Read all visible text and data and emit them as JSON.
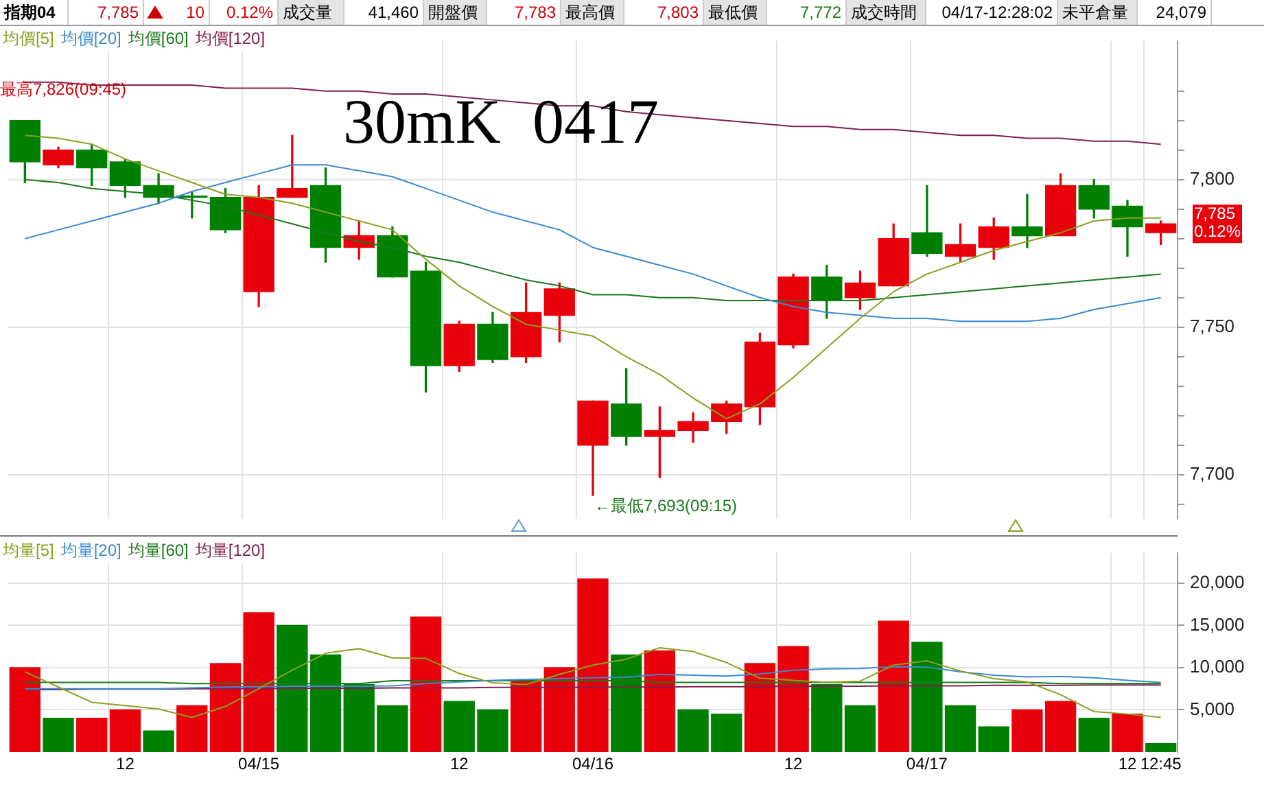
{
  "chart_data": [
    {
      "type": "other",
      "annotations": [
        "指期04",
        "7,785",
        "10",
        "0.12%",
        "成交量",
        "41,460",
        "開盤價",
        "7,783",
        "最高價",
        "7,803",
        "最低價",
        "7,772",
        "成交時間",
        "04/17-12:28:02",
        "未平倉量",
        "24,079"
      ]
    },
    {
      "type": "candlestick",
      "title": "30mK  0417",
      "categories": [
        null,
        null,
        null,
        null,
        null,
        null,
        null,
        null,
        null,
        null,
        null,
        null,
        null,
        null,
        null,
        null,
        null,
        null,
        null,
        null,
        null,
        null,
        null,
        null,
        null,
        null,
        null,
        null,
        null,
        null,
        null,
        null,
        null,
        null,
        null
      ],
      "ohlc": [
        [
          7820,
          7820,
          7799,
          7806
        ],
        [
          7805,
          7811,
          7804,
          7810
        ],
        [
          7810,
          7812,
          7798,
          7804
        ],
        [
          7806,
          7807,
          7794,
          7798
        ],
        [
          7798,
          7802,
          7792,
          7794
        ],
        [
          7794,
          7796,
          7787,
          7794
        ],
        [
          7794,
          7797,
          7782,
          7783
        ],
        [
          7762,
          7798,
          7757,
          7794
        ],
        [
          7794,
          7815,
          7794,
          7797
        ],
        [
          7798,
          7804,
          7772,
          7777
        ],
        [
          7777,
          7786,
          7773,
          7781
        ],
        [
          7781,
          7784,
          7767,
          7767
        ],
        [
          7769,
          7772,
          7728,
          7737
        ],
        [
          7737,
          7752,
          7735,
          7751
        ],
        [
          7751,
          7755,
          7738,
          7739
        ],
        [
          7740,
          7765,
          7738,
          7755
        ],
        [
          7754,
          7765,
          7745,
          7763
        ],
        [
          7710,
          7725,
          7693,
          7725
        ],
        [
          7724,
          7736,
          7710,
          7713
        ],
        [
          7713,
          7723,
          7699,
          7715
        ],
        [
          7715,
          7721,
          7711,
          7718
        ],
        [
          7718,
          7725,
          7714,
          7724
        ],
        [
          7723,
          7748,
          7717,
          7745
        ],
        [
          7744,
          7768,
          7743,
          7767
        ],
        [
          7767,
          7771,
          7753,
          7759
        ],
        [
          7760,
          7769,
          7756,
          7765
        ],
        [
          7764,
          7785,
          7764,
          7780
        ],
        [
          7782,
          7798,
          7774,
          7775
        ],
        [
          7774,
          7785,
          7772,
          7778
        ],
        [
          7777,
          7787,
          7773,
          7784
        ],
        [
          7784,
          7795,
          7777,
          7781
        ],
        [
          7781,
          7802,
          7781,
          7798
        ],
        [
          7798,
          7800,
          7787,
          7790
        ],
        [
          7791,
          7793,
          7774,
          7784
        ],
        [
          7782,
          7786,
          7778,
          7785
        ]
      ],
      "colors": [
        "#008000",
        "#e8000b",
        "#008000",
        "#008000",
        "#008000",
        "#008000",
        "#008000",
        "#e8000b",
        "#e8000b",
        "#008000",
        "#e8000b",
        "#008000",
        "#008000",
        "#e8000b",
        "#008000",
        "#e8000b",
        "#e8000b",
        "#e8000b",
        "#008000",
        "#e8000b",
        "#e8000b",
        "#e8000b",
        "#e8000b",
        "#e8000b",
        "#008000",
        "#e8000b",
        "#e8000b",
        "#008000",
        "#e8000b",
        "#e8000b",
        "#008000",
        "#e8000b",
        "#008000",
        "#008000",
        "#e8000b"
      ],
      "series": [
        {
          "name": "均價[5]",
          "type": "line",
          "color": "#8aa020",
          "values": [
            7815,
            7814,
            7812,
            7807,
            7803,
            7799,
            7795,
            7794,
            7792,
            7789,
            7786,
            7783,
            7773,
            7764,
            7757,
            7751,
            7749,
            7747,
            7740,
            7734,
            7726,
            7719,
            7724,
            7733,
            7743,
            7753,
            7762,
            7768,
            7772,
            7776,
            7779,
            7782,
            7786,
            7787,
            7787
          ]
        },
        {
          "name": "均價[20]",
          "type": "line",
          "color": "#3a8ad0",
          "values": [
            7780,
            7783,
            7786,
            7789,
            7792,
            7796,
            7799,
            7802,
            7805,
            7805,
            7803,
            7801,
            7797,
            7793,
            7789,
            7786,
            7783,
            7777,
            7774,
            7771,
            7768,
            7764,
            7760,
            7757,
            7755,
            7754,
            7753,
            7753,
            7752,
            7752,
            7752,
            7753,
            7756,
            7758,
            7760
          ]
        },
        {
          "name": "均價[60]",
          "type": "line",
          "color": "#1a7a1a",
          "values": [
            7800,
            7799,
            7797,
            7796,
            7795,
            7793,
            7791,
            7788,
            7785,
            7782,
            7779,
            7777,
            7774,
            7772,
            7769,
            7766,
            7764,
            7761,
            7761,
            7760,
            7760,
            7759,
            7759,
            7759,
            7759,
            7759,
            7760,
            7761,
            7762,
            7763,
            7764,
            7765,
            7766,
            7767,
            7768
          ]
        },
        {
          "name": "均價[120]",
          "type": "line",
          "color": "#802050",
          "values": [
            7833,
            7833,
            7832,
            7832,
            7832,
            7832,
            7831,
            7831,
            7831,
            7830,
            7830,
            7829,
            7829,
            7828,
            7827,
            7826,
            7825,
            7825,
            7823,
            7822,
            7821,
            7820,
            7819,
            7818,
            7818,
            7817,
            7817,
            7816,
            7815,
            7815,
            7814,
            7814,
            7813,
            7813,
            7812
          ]
        }
      ],
      "ylim": [
        7685,
        7847
      ],
      "yticks": [
        {
          "value": 7690,
          "label": null
        },
        {
          "value": 7700,
          "label": "7,700"
        },
        {
          "value": 7710,
          "label": null
        },
        {
          "value": 7720,
          "label": null
        },
        {
          "value": 7730,
          "label": null
        },
        {
          "value": 7740,
          "label": null
        },
        {
          "value": 7750,
          "label": "7,750"
        },
        {
          "value": 7760,
          "label": null
        },
        {
          "value": 7770,
          "label": null
        },
        {
          "value": 7780,
          "label": null
        },
        {
          "value": 7790,
          "label": null
        },
        {
          "value": 7800,
          "label": "7,800"
        },
        {
          "value": 7810,
          "label": null
        },
        {
          "value": 7820,
          "label": null
        },
        {
          "value": 7830,
          "label": null
        }
      ],
      "grid": true,
      "legend": "top left",
      "tick_labels": "y",
      "annotations": [
        "最高7,826(09:45)",
        "←最低7,693(09:15)",
        "7,785 0.12%"
      ]
    },
    {
      "type": "bar",
      "categories": [
        null,
        null,
        null,
        "12",
        null,
        null,
        null,
        "04/15",
        null,
        null,
        null,
        null,
        null,
        "12",
        null,
        null,
        null,
        "04/16",
        null,
        null,
        null,
        null,
        null,
        "12",
        null,
        null,
        null,
        "04/17",
        null,
        null,
        null,
        null,
        null,
        "12",
        "12:45"
      ],
      "series": [
        {
          "colors": [
            "#e8000b",
            "#008000",
            "#e8000b",
            "#e8000b",
            "#008000",
            "#e8000b",
            "#e8000b",
            "#e8000b",
            "#008000",
            "#008000",
            "#008000",
            "#008000",
            "#e8000b",
            "#008000",
            "#008000",
            "#e8000b",
            "#e8000b",
            "#e8000b",
            "#008000",
            "#e8000b",
            "#008000",
            "#008000",
            "#e8000b",
            "#e8000b",
            "#008000",
            "#008000",
            "#e8000b",
            "#008000",
            "#008000",
            "#008000",
            "#e8000b",
            "#e8000b",
            "#008000",
            "#e8000b",
            "#008000"
          ],
          "values": [
            10000,
            4000,
            4000,
            5000,
            2500,
            5500,
            10500,
            16500,
            15000,
            11500,
            8000,
            5500,
            16000,
            6000,
            5000,
            8500,
            10000,
            20500,
            11500,
            12000,
            5000,
            4500,
            10500,
            12500,
            8000,
            5500,
            15500,
            13000,
            5500,
            3000,
            5000,
            6000,
            4000,
            4500,
            1000
          ]
        },
        {
          "name": "均量[5]",
          "type": "line",
          "color": "#8aa020",
          "values": [
            9500,
            7700,
            5900,
            5500,
            5100,
            4100,
            5400,
            7500,
            9700,
            11700,
            12250,
            11150,
            11100,
            9300,
            8200,
            8000,
            9200,
            10300,
            11000,
            12350,
            11900,
            10600,
            8750,
            8500,
            8250,
            8400,
            10300,
            10800,
            9600,
            8700,
            8300,
            6800,
            4800,
            4500,
            4100
          ]
        },
        {
          "name": "均量[20]",
          "type": "line",
          "color": "#3a8ad0",
          "values": [
            7500,
            7500,
            7500,
            7500,
            7500,
            7600,
            7700,
            7750,
            7800,
            7800,
            7800,
            7850,
            8100,
            8300,
            8500,
            8600,
            8700,
            8800,
            8850,
            9200,
            9100,
            9000,
            9250,
            9700,
            9850,
            9900,
            10100,
            10050,
            9500,
            9100,
            8900,
            8950,
            8800,
            8500,
            8250
          ]
        },
        {
          "name": "均量[60]",
          "type": "line",
          "color": "#1a7a1a",
          "values": [
            8250,
            8250,
            8250,
            8250,
            8250,
            8100,
            8100,
            8100,
            8100,
            8100,
            8100,
            8450,
            8450,
            8450,
            8450,
            8450,
            8450,
            8450,
            8450,
            8250,
            8250,
            8250,
            8250,
            8250,
            8250,
            8250,
            8250,
            8250,
            8250,
            8250,
            8250,
            8100,
            8100,
            8100,
            8100
          ]
        },
        {
          "name": "均量[120]",
          "type": "line",
          "color": "#802050",
          "values": [
            7400,
            7400,
            7450,
            7450,
            7450,
            7500,
            7500,
            7500,
            7550,
            7550,
            7550,
            7600,
            7600,
            7600,
            7650,
            7650,
            7650,
            7700,
            7700,
            7700,
            7750,
            7750,
            7750,
            7800,
            7800,
            7800,
            7850,
            7850,
            7850,
            7900,
            7900,
            7900,
            7950,
            7950,
            7950
          ]
        }
      ],
      "ylim": [
        0,
        23600
      ],
      "yticks": [
        {
          "value": 5000,
          "label": "5,000"
        },
        {
          "value": 10000,
          "label": "10,000"
        },
        {
          "value": 15000,
          "label": "15,000"
        },
        {
          "value": 20000,
          "label": "20,000"
        }
      ],
      "grid": true,
      "legend": "top left"
    }
  ]
}
